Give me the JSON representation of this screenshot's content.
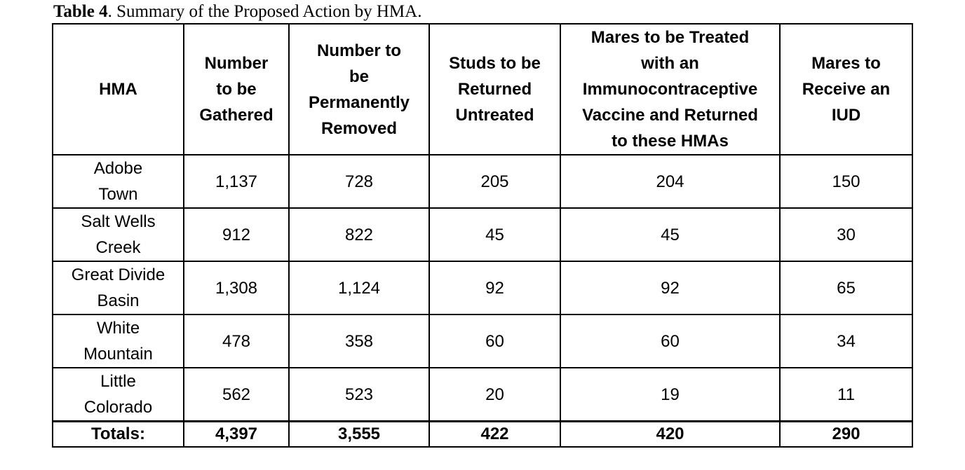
{
  "caption": {
    "label": "Table 4",
    "text": ". Summary of the Proposed Action by HMA."
  },
  "table": {
    "headers": [
      [
        "HMA"
      ],
      [
        "Number",
        "to be",
        "Gathered"
      ],
      [
        "Number to",
        "be",
        "Permanently",
        "Removed"
      ],
      [
        "Studs to be",
        "Returned",
        "Untreated"
      ],
      [
        "Mares to be Treated",
        "with an",
        "Immunocontraceptive",
        "Vaccine and Returned",
        "to these HMAs"
      ],
      [
        "Mares to",
        "Receive an",
        "IUD"
      ]
    ],
    "rows": [
      {
        "hma": [
          "Adobe",
          "Town"
        ],
        "gathered": "1,137",
        "removed": "728",
        "studs": "205",
        "mares_vaccine": "204",
        "mares_iud": "150"
      },
      {
        "hma": [
          "Salt Wells",
          "Creek"
        ],
        "gathered": "912",
        "removed": "822",
        "studs": "45",
        "mares_vaccine": "45",
        "mares_iud": "30"
      },
      {
        "hma": [
          "Great Divide",
          "Basin"
        ],
        "gathered": "1,308",
        "removed": "1,124",
        "studs": "92",
        "mares_vaccine": "92",
        "mares_iud": "65"
      },
      {
        "hma": [
          "White",
          "Mountain"
        ],
        "gathered": "478",
        "removed": "358",
        "studs": "60",
        "mares_vaccine": "60",
        "mares_iud": "34"
      },
      {
        "hma": [
          "Little",
          "Colorado"
        ],
        "gathered": "562",
        "removed": "523",
        "studs": "20",
        "mares_vaccine": "19",
        "mares_iud": "11"
      }
    ],
    "totals": {
      "label": "Totals:",
      "gathered": "4,397",
      "removed": "3,555",
      "studs": "422",
      "mares_vaccine": "420",
      "mares_iud": "290"
    }
  }
}
